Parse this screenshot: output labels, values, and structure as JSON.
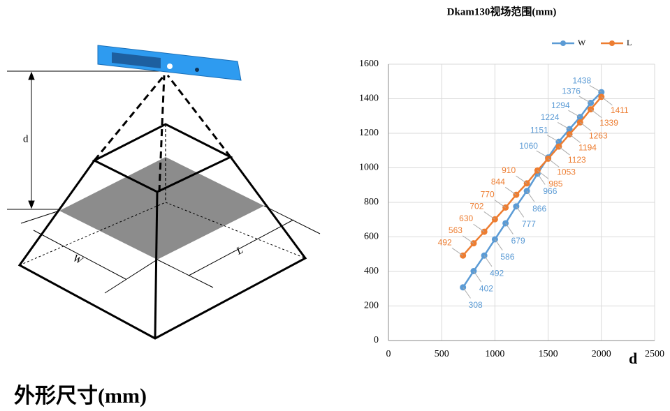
{
  "diagram": {
    "labels": {
      "d": "d",
      "w": "W",
      "l": "L"
    }
  },
  "heading": "外形尺寸(mm)",
  "chart_data": {
    "type": "line",
    "title": "Dkam130视场范围(mm)",
    "x_label": "d",
    "x": [
      700,
      800,
      900,
      1000,
      1100,
      1200,
      1300,
      1400,
      1500,
      1600,
      1700,
      1800,
      1900,
      2000
    ],
    "series": [
      {
        "name": "W",
        "color": "#5b9bd5",
        "values": [
          308,
          402,
          492,
          586,
          679,
          777,
          866,
          966,
          1060,
          1151,
          1224,
          1294,
          1376,
          1438
        ]
      },
      {
        "name": "L",
        "color": "#ed7d31",
        "values": [
          492,
          563,
          630,
          702,
          770,
          844,
          910,
          985,
          1053,
          1123,
          1194,
          1263,
          1339,
          1411
        ]
      }
    ],
    "xlim": [
      0,
      2500
    ],
    "xticks": [
      0,
      500,
      1000,
      1500,
      2000,
      2500
    ],
    "ylim": [
      0,
      1600
    ],
    "yticks": [
      0,
      200,
      400,
      600,
      800,
      1000,
      1200,
      1400,
      1600
    ],
    "grid": true,
    "legend": "top-right"
  }
}
